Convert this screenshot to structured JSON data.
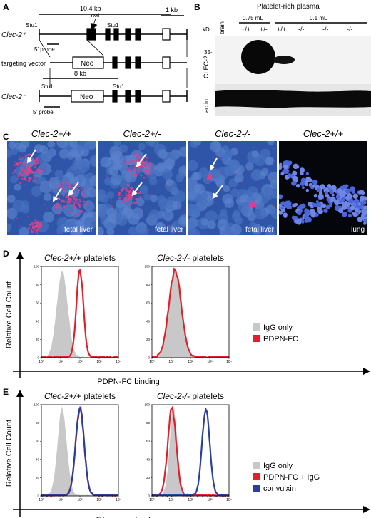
{
  "panel_a": {
    "label": "A",
    "length_wt": "10.4 kb",
    "scale_bar": "1 kb",
    "wt_allele": "Clec-2⁺",
    "motif": "Yxxl",
    "stu_sites": [
      "Stu1",
      "Stu1",
      "Stu1",
      "Stu1"
    ],
    "probe_wt": "5' probe",
    "targeting_vector": "targeting vector",
    "neo_vector": "Neo",
    "ko_allele": "Clec-2⁻",
    "length_ko": "8 kb",
    "probe_ko": "5' probe",
    "neo_ko": "Neo"
  },
  "panel_b": {
    "label": "B",
    "title": "Platelet-rich plasma",
    "unit": "kD",
    "brain": "brain",
    "volume_1": "0.75 mL",
    "volume_2": "0.1 mL",
    "genotypes": [
      "+/+",
      "+/-",
      "+/+",
      "-/-",
      "-/-",
      "-/-"
    ],
    "marker": "35-",
    "blot_1": "CLEC-2",
    "blot_2": "actin"
  },
  "panel_c": {
    "label": "C",
    "images": [
      {
        "genotype": "Clec-2+/+",
        "tissue": "fetal liver"
      },
      {
        "genotype": "Clec-2+/-",
        "tissue": "fetal liver"
      },
      {
        "genotype": "Clec-2-/-",
        "tissue": "fetal liver"
      },
      {
        "genotype": "Clec-2+/+",
        "tissue": "lung"
      }
    ]
  },
  "panel_d": {
    "label": "D",
    "y_label": "Relative Cell Count",
    "x_label": "PDPN-FC binding",
    "plots": [
      {
        "genotype": "Clec-2+/+",
        "suffix": "platelets"
      },
      {
        "genotype": "Clec-2-/-",
        "suffix": "platelets"
      }
    ],
    "legend": [
      {
        "name": "IgG only",
        "color": "#c8c8c8"
      },
      {
        "name": "PDPN-FC",
        "color": "#e0202a"
      }
    ]
  },
  "panel_e": {
    "label": "E",
    "y_label": "Relative Cell Count",
    "x_label": "Fibrinogen binding",
    "plots": [
      {
        "genotype": "Clec-2+/+",
        "suffix": "platelets"
      },
      {
        "genotype": "Clec-2-/-",
        "suffix": "platelets"
      }
    ],
    "legend": [
      {
        "name": "IgG only",
        "color": "#c8c8c8"
      },
      {
        "name": "PDPN-FC + IgG",
        "color": "#e0202a"
      },
      {
        "name": "convulxin",
        "color": "#2a3f9e"
      }
    ]
  },
  "hist_axes": {
    "ylim": [
      0,
      100
    ],
    "yticks": [
      0,
      20,
      40,
      60,
      80,
      100
    ],
    "xscale": "log",
    "xlim": [
      1,
      10000
    ],
    "xticks": [
      {
        "value": 1,
        "label": "10⁰"
      },
      {
        "value": 10,
        "label": "10¹"
      },
      {
        "value": 100,
        "label": "10²"
      },
      {
        "value": 1000,
        "label": "10³"
      },
      {
        "value": 10000,
        "label": "10⁴"
      }
    ]
  }
}
